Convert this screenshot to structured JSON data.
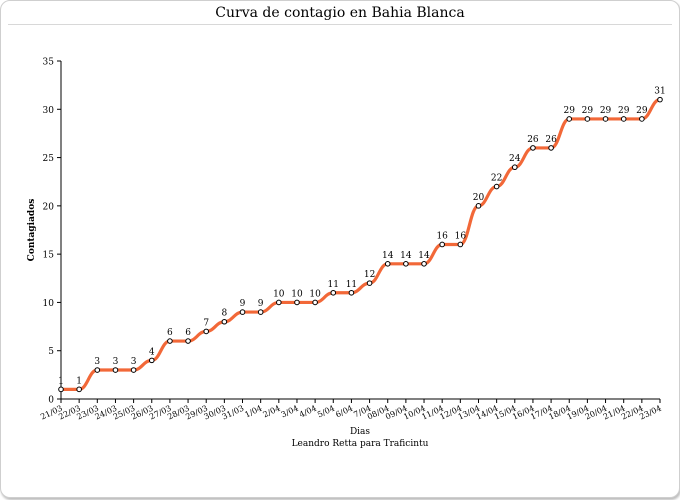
{
  "chart_data": {
    "type": "line",
    "title": "Curva de contagio en Bahia Blanca",
    "xlabel": "Dias",
    "ylabel": "Contagiados",
    "credit": "Leandro Retta para Traficintu",
    "ylim": [
      0,
      35
    ],
    "yticks": [
      0,
      5,
      10,
      15,
      20,
      25,
      30,
      35
    ],
    "grid": false,
    "line_color": "#f26838",
    "categories": [
      "21/03",
      "22/03",
      "23/03",
      "24/03",
      "25/03",
      "26/03",
      "27/03",
      "28/03",
      "29/03",
      "30/03",
      "31/03",
      "1/04",
      "2/04",
      "3/04",
      "4/04",
      "5/04",
      "6/04",
      "7/04",
      "08/04",
      "09/04",
      "10/04",
      "11/04",
      "12/04",
      "13/04",
      "14/04",
      "15/04",
      "16/04",
      "17/04",
      "18/04",
      "19/04",
      "20/04",
      "21/04",
      "22/04",
      "23/04"
    ],
    "values": [
      1,
      1,
      3,
      3,
      3,
      4,
      6,
      6,
      7,
      8,
      9,
      9,
      10,
      10,
      10,
      11,
      11,
      12,
      14,
      14,
      14,
      16,
      16,
      20,
      22,
      24,
      26,
      26,
      29,
      29,
      29,
      29,
      29,
      31
    ]
  }
}
